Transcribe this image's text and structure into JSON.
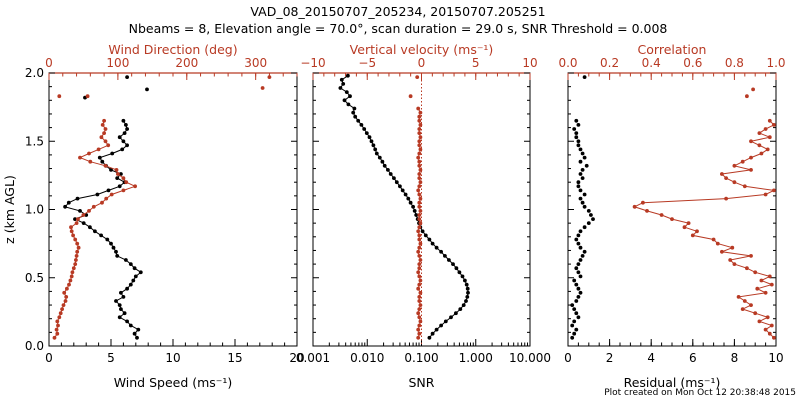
{
  "header": {
    "title_line1": "VAD_08_20150707_205234, 20150707.205251",
    "title_line2": "Nbeams = 8, Elevation angle = 70.0°, scan duration = 29.0 s, SNR Threshold = 0.008",
    "footer": "Plot created on Mon Oct 12 20:38:48 2015"
  },
  "colors": {
    "black": "#000000",
    "red": "#b83a24",
    "red_dot": "#b03a2e"
  },
  "chart_data": [
    {
      "type": "line",
      "name": "wind",
      "ylabel": "z (km AGL)",
      "ylim": [
        0,
        2
      ],
      "y_ticks": [
        0.0,
        0.5,
        1.0,
        1.5,
        2.0
      ],
      "y_tick_labels": [
        "0.0",
        "0.5",
        "1.0",
        "1.5",
        "2.0"
      ],
      "bottom_axis": {
        "label": "Wind Speed (ms⁻¹)",
        "range": [
          0,
          20
        ],
        "ticks": [
          0,
          5,
          10,
          15,
          20
        ],
        "tick_labels": [
          "0",
          "5",
          "10",
          "15",
          "20"
        ]
      },
      "top_axis": {
        "label": "Wind Direction (deg)",
        "range": [
          0,
          360
        ],
        "ticks": [
          0,
          100,
          200,
          300
        ],
        "tick_labels": [
          "0",
          "100",
          "200",
          "300"
        ]
      },
      "z": [
        0.06,
        0.09,
        0.12,
        0.15,
        0.18,
        0.21,
        0.24,
        0.27,
        0.3,
        0.33,
        0.36,
        0.39,
        0.42,
        0.45,
        0.48,
        0.51,
        0.54,
        0.57,
        0.6,
        0.63,
        0.66,
        0.69,
        0.72,
        0.75,
        0.78,
        0.81,
        0.84,
        0.87,
        0.9,
        0.93,
        0.96,
        0.99,
        1.02,
        1.05,
        1.08,
        1.11,
        1.14,
        1.17,
        1.2,
        1.23,
        1.26,
        1.29,
        1.32,
        1.35,
        1.38,
        1.41,
        1.44,
        1.47,
        1.5,
        1.53,
        1.56,
        1.59,
        1.62,
        1.65
      ],
      "series": [
        {
          "name": "Wind Speed",
          "axis": "bottom",
          "color": "#000000",
          "values": [
            7.1,
            6.9,
            7.2,
            6.6,
            6.3,
            5.7,
            6.1,
            5.8,
            5.7,
            5.4,
            6.0,
            5.8,
            6.3,
            6.6,
            6.8,
            7.0,
            7.4,
            6.9,
            6.6,
            6.2,
            5.5,
            5.4,
            5.2,
            5.0,
            4.7,
            4.2,
            3.7,
            3.3,
            2.8,
            2.1,
            3.0,
            2.5,
            1.3,
            1.6,
            2.3,
            3.9,
            4.8,
            5.7,
            6.1,
            5.5,
            5.8,
            5.0,
            4.6,
            4.3,
            4.1,
            5.1,
            5.9,
            6.3,
            6.0,
            5.7,
            6.1,
            6.3,
            6.2,
            6.0
          ]
        },
        {
          "name": "Wind Direction",
          "axis": "top",
          "color": "#b83a24",
          "values": [
            8,
            12,
            11,
            13,
            12,
            15,
            17,
            19,
            21,
            24,
            25,
            22,
            26,
            29,
            31,
            33,
            34,
            36,
            38,
            39,
            40,
            41,
            43,
            41,
            38,
            35,
            33,
            32,
            40,
            42,
            50,
            58,
            65,
            77,
            83,
            91,
            108,
            125,
            112,
            108,
            100,
            98,
            82,
            60,
            45,
            58,
            72,
            86,
            82,
            76,
            80,
            82,
            78,
            80
          ]
        }
      ],
      "outliers": [
        {
          "series": "Wind Speed",
          "value": 7.9,
          "z": 1.88
        },
        {
          "series": "Wind Speed",
          "value": 6.3,
          "z": 1.97
        },
        {
          "series": "Wind Speed",
          "value": 2.9,
          "z": 1.82
        },
        {
          "series": "Wind Direction",
          "value": 15,
          "z": 1.83
        },
        {
          "series": "Wind Direction",
          "value": 56,
          "z": 1.83
        },
        {
          "series": "Wind Direction",
          "value": 320,
          "z": 1.97
        },
        {
          "series": "Wind Direction",
          "value": 310,
          "z": 1.89
        }
      ]
    },
    {
      "type": "line",
      "name": "snr_w",
      "ylim": [
        0,
        2
      ],
      "bottom_axis": {
        "label": "SNR",
        "scale": "log",
        "range": [
          0.001,
          10
        ],
        "ticks": [
          0.001,
          0.01,
          0.1,
          1,
          10
        ],
        "tick_labels": [
          "0.001",
          "0.010",
          "0.100",
          "1.000",
          "10.000"
        ]
      },
      "top_axis": {
        "label": "Vertical velocity (ms⁻¹)",
        "range": [
          -10,
          10
        ],
        "ticks": [
          -10,
          -5,
          0,
          5,
          10
        ],
        "tick_labels": [
          "−10",
          "−5",
          "0",
          "5",
          "10"
        ]
      },
      "snr_z": [
        0.06,
        0.09,
        0.12,
        0.15,
        0.18,
        0.21,
        0.24,
        0.27,
        0.3,
        0.33,
        0.36,
        0.39,
        0.42,
        0.45,
        0.48,
        0.51,
        0.54,
        0.57,
        0.6,
        0.63,
        0.66,
        0.69,
        0.72,
        0.75,
        0.78,
        0.81,
        0.84,
        0.87,
        0.9,
        0.93,
        0.96,
        0.99,
        1.02,
        1.05,
        1.08,
        1.11,
        1.14,
        1.17,
        1.2,
        1.23,
        1.26,
        1.29,
        1.32,
        1.35,
        1.38,
        1.41,
        1.44,
        1.47,
        1.5,
        1.53,
        1.56,
        1.59,
        1.62,
        1.65,
        1.68,
        1.71,
        1.74,
        1.77,
        1.8,
        1.83,
        1.86,
        1.89,
        1.92,
        1.95,
        1.98
      ],
      "snr_values": [
        0.14,
        0.16,
        0.19,
        0.23,
        0.28,
        0.35,
        0.43,
        0.52,
        0.6,
        0.66,
        0.7,
        0.72,
        0.71,
        0.68,
        0.63,
        0.57,
        0.5,
        0.44,
        0.38,
        0.32,
        0.27,
        0.23,
        0.19,
        0.16,
        0.14,
        0.12,
        0.105,
        0.095,
        0.09,
        0.085,
        0.08,
        0.075,
        0.07,
        0.063,
        0.057,
        0.051,
        0.045,
        0.04,
        0.035,
        0.031,
        0.027,
        0.024,
        0.021,
        0.019,
        0.017,
        0.015,
        0.014,
        0.013,
        0.012,
        0.011,
        0.0098,
        0.0088,
        0.0078,
        0.0068,
        0.006,
        0.0055,
        0.0058,
        0.0045,
        0.0038,
        0.0048,
        0.0042,
        0.0032,
        0.0036,
        0.0034,
        0.0044
      ],
      "w_values": [
        -0.3,
        -0.2,
        -0.3,
        -0.2,
        -0.1,
        -0.2,
        -0.3,
        -0.2,
        -0.1,
        -0.2,
        -0.2,
        -0.1,
        -0.3,
        -0.2,
        -0.1,
        -0.2,
        -0.3,
        -0.2,
        -0.2,
        -0.1,
        -0.2,
        -0.3,
        -0.2,
        -0.1,
        -0.2,
        -0.2,
        -0.3,
        -0.2,
        -0.1,
        -0.2,
        -0.2,
        -0.1,
        -0.2,
        -0.2,
        -0.1,
        -0.2,
        -0.3,
        -0.2,
        -0.1,
        -0.2,
        -0.2,
        -0.1,
        -0.2,
        -0.2,
        -0.3,
        -0.2,
        -0.1,
        -0.2,
        -0.2,
        -0.1,
        -0.2,
        -0.2,
        -0.1,
        -0.2,
        -0.2,
        -0.1,
        -0.3
      ],
      "w_outliers": [
        {
          "value": -1.0,
          "z": 1.83
        },
        {
          "value": -0.4,
          "z": 1.97
        }
      ],
      "zero_line": 0
    },
    {
      "type": "scatter",
      "name": "corr_res",
      "ylim": [
        0,
        2
      ],
      "bottom_axis": {
        "label": "Residual (ms⁻¹)",
        "range": [
          0,
          10
        ],
        "ticks": [
          0,
          2,
          4,
          6,
          8,
          10
        ],
        "tick_labels": [
          "0",
          "2",
          "4",
          "6",
          "8",
          "10"
        ]
      },
      "top_axis": {
        "label": "Correlation",
        "range": [
          0,
          1
        ],
        "ticks": [
          0,
          0.2,
          0.4,
          0.6,
          0.8,
          1.0
        ],
        "tick_labels": [
          "0.0",
          "0.2",
          "0.4",
          "0.6",
          "0.8",
          "1.0"
        ]
      },
      "z": [
        0.06,
        0.09,
        0.12,
        0.15,
        0.18,
        0.21,
        0.24,
        0.27,
        0.3,
        0.33,
        0.36,
        0.39,
        0.42,
        0.45,
        0.48,
        0.51,
        0.54,
        0.57,
        0.6,
        0.63,
        0.66,
        0.69,
        0.72,
        0.75,
        0.78,
        0.81,
        0.84,
        0.87,
        0.9,
        0.93,
        0.96,
        0.99,
        1.02,
        1.05,
        1.08,
        1.11,
        1.14,
        1.17,
        1.2,
        1.23,
        1.26,
        1.29,
        1.32,
        1.35,
        1.38,
        1.41,
        1.44,
        1.47,
        1.5,
        1.53,
        1.56,
        1.59,
        1.62,
        1.65
      ],
      "series": [
        {
          "name": "Residual",
          "axis": "bottom",
          "color": "#000000",
          "connected": false,
          "values": [
            0.2,
            0.3,
            0.4,
            0.2,
            0.3,
            0.5,
            0.4,
            0.3,
            0.2,
            0.4,
            0.5,
            0.6,
            0.5,
            0.4,
            0.3,
            0.6,
            0.5,
            0.4,
            0.5,
            0.6,
            0.7,
            0.8,
            0.6,
            0.5,
            0.4,
            0.5,
            0.6,
            0.8,
            1.0,
            1.2,
            1.1,
            1.0,
            0.8,
            0.7,
            0.6,
            0.8,
            0.6,
            0.5,
            0.5,
            0.7,
            0.6,
            0.7,
            0.9,
            0.6,
            0.8,
            0.7,
            0.6,
            0.5,
            0.5,
            0.4,
            0.4,
            0.3,
            0.5,
            0.4
          ]
        },
        {
          "name": "Correlation",
          "axis": "top",
          "color": "#b83a24",
          "connected": true,
          "values": [
            0.99,
            0.97,
            0.95,
            0.98,
            0.92,
            0.96,
            0.9,
            0.84,
            0.88,
            0.85,
            0.82,
            0.95,
            0.91,
            0.98,
            0.93,
            0.97,
            0.9,
            0.86,
            0.8,
            0.78,
            0.88,
            0.74,
            0.79,
            0.72,
            0.7,
            0.6,
            0.62,
            0.56,
            0.58,
            0.5,
            0.45,
            0.38,
            0.32,
            0.36,
            0.76,
            0.95,
            0.99,
            0.85,
            0.8,
            0.76,
            0.74,
            0.88,
            0.8,
            0.84,
            0.88,
            0.93,
            0.96,
            0.92,
            0.88,
            0.97,
            0.92,
            0.95,
            0.99,
            0.97
          ]
        }
      ],
      "outliers": [
        {
          "series": "Residual",
          "value": 0.8,
          "z": 1.97
        },
        {
          "series": "Correlation",
          "value": 0.89,
          "z": 1.88
        },
        {
          "series": "Correlation",
          "value": 0.86,
          "z": 1.83
        }
      ]
    }
  ]
}
